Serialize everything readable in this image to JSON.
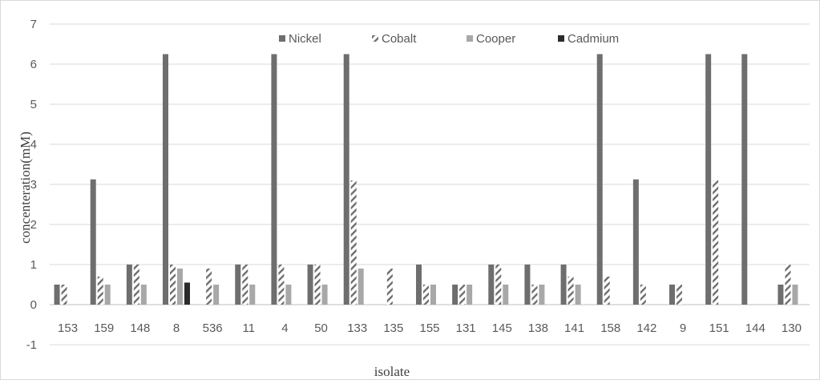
{
  "chart_data": {
    "type": "bar",
    "xlabel": "isolate",
    "ylabel": "concenteration(mM)",
    "ylim": [
      -1,
      7
    ],
    "yticks": [
      -1,
      0,
      1,
      2,
      3,
      4,
      5,
      6,
      7
    ],
    "grid": true,
    "legend_position": "top",
    "categories": [
      "153",
      "159",
      "148",
      "8",
      "536",
      "11",
      "4",
      "50",
      "133",
      "135",
      "155",
      "131",
      "145",
      "138",
      "141",
      "158",
      "142",
      "9",
      "151",
      "144",
      "130"
    ],
    "series": [
      {
        "name": "Nickel",
        "pattern": "solid",
        "color": "#6e6e6e",
        "values": [
          0.5,
          3.125,
          1,
          6.25,
          0,
          1,
          6.25,
          1,
          6.25,
          0,
          1,
          0.5,
          1,
          1,
          1,
          6.25,
          3.125,
          0.5,
          6.25,
          6.25,
          0.5
        ]
      },
      {
        "name": "Cobalt",
        "pattern": "diagonal-hatch",
        "color": "#6e6e6e",
        "values": [
          0.5,
          0.7,
          1,
          1,
          0.9,
          1,
          1,
          1,
          3.1,
          0.9,
          0.5,
          0.5,
          1,
          0.5,
          0.7,
          0.7,
          0.5,
          0.5,
          3.1,
          0,
          1
        ]
      },
      {
        "name": "Cooper",
        "pattern": "solid",
        "color": "#a8a8a8",
        "values": [
          0,
          0.5,
          0.5,
          0.9,
          0.5,
          0.5,
          0.5,
          0.5,
          0.9,
          0,
          0.5,
          0.5,
          0.5,
          0.5,
          0.5,
          0,
          0,
          0,
          0,
          0,
          0.5
        ]
      },
      {
        "name": "Cadmium",
        "pattern": "solid",
        "color": "#2b2b2b",
        "values": [
          0,
          0,
          0,
          0.55,
          0,
          0,
          0,
          0,
          0,
          0,
          0,
          0,
          0,
          0,
          0,
          0,
          0,
          0,
          0,
          0,
          0
        ]
      }
    ]
  }
}
